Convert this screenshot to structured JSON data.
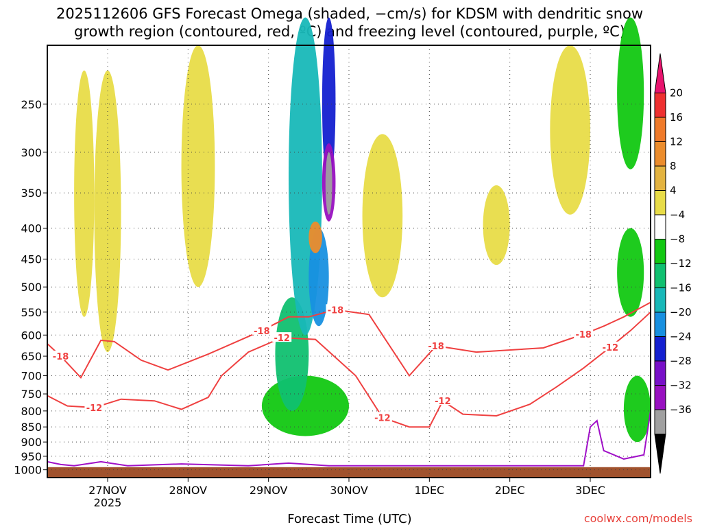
{
  "title": {
    "line1": "2025112606 GFS Forecast Omega (shaded, −cm/s) for KDSM with dendritic snow",
    "line2": "growth region (contoured, red, ºC) and freezing level (contoured, purple, ºC)"
  },
  "credit": "coolwx.com/models",
  "chart_data": {
    "type": "heatmap",
    "title": "2025112606 GFS Forecast Omega (shaded, −cm/s) for KDSM with dendritic snow growth region (contoured, red, ºC) and freezing level (contoured, purple, ºC)",
    "xlabel": "Forecast Time (UTC)",
    "ylabel": "",
    "x_ticks": [
      {
        "label": "27NOV",
        "sublabel": "2025",
        "hours": 18
      },
      {
        "label": "28NOV",
        "sublabel": "",
        "hours": 42
      },
      {
        "label": "29NOV",
        "sublabel": "",
        "hours": 66
      },
      {
        "label": "30NOV",
        "sublabel": "",
        "hours": 90
      },
      {
        "label": "1DEC",
        "sublabel": "",
        "hours": 114
      },
      {
        "label": "2DEC",
        "sublabel": "",
        "hours": 138
      },
      {
        "label": "3DEC",
        "sublabel": "",
        "hours": 162
      }
    ],
    "x_range_hours": [
      0,
      180
    ],
    "y_ticks": [
      "250",
      "300",
      "350",
      "400",
      "450",
      "500",
      "550",
      "600",
      "650",
      "700",
      "750",
      "800",
      "850",
      "900",
      "950",
      "1000"
    ],
    "y_range_hpa": [
      200,
      1030
    ],
    "y_scale": "log",
    "grid": true,
    "colorbar": {
      "ticks": [
        "20",
        "16",
        "12",
        "8",
        "4",
        "−4",
        "−8",
        "−12",
        "−16",
        "−20",
        "−24",
        "−28",
        "−32",
        "−36"
      ],
      "colors": [
        "#e8146e",
        "#ee3030",
        "#ef7a2a",
        "#eb8c2c",
        "#e3b340",
        "#e8dc48",
        "#ffffff",
        "#12c812",
        "#10c070",
        "#18b8b8",
        "#1890e0",
        "#1420d0",
        "#7810c8",
        "#9810c0",
        "#a0a0a0",
        "#000000"
      ]
    },
    "contours": {
      "dgz_color": "#ef4040",
      "freezing_color": "#a010c8",
      "labels_minus18": [
        "-18",
        "-18",
        "-18",
        "-18",
        "-18"
      ],
      "labels_minus12": [
        "-12",
        "-12",
        "-12",
        "-12",
        "-12"
      ],
      "minus18": [
        [
          0,
          620
        ],
        [
          4,
          650
        ],
        [
          10,
          705
        ],
        [
          16,
          612
        ],
        [
          20,
          615
        ],
        [
          28,
          660
        ],
        [
          36,
          685
        ],
        [
          48,
          645
        ],
        [
          64,
          590
        ],
        [
          72,
          560
        ],
        [
          78,
          560
        ],
        [
          86,
          545
        ],
        [
          96,
          555
        ],
        [
          108,
          700
        ],
        [
          116,
          625
        ],
        [
          128,
          640
        ],
        [
          148,
          630
        ],
        [
          160,
          598
        ],
        [
          166,
          580
        ],
        [
          172,
          560
        ],
        [
          180,
          530
        ]
      ],
      "minus12": [
        [
          0,
          755
        ],
        [
          6,
          785
        ],
        [
          14,
          790
        ],
        [
          22,
          765
        ],
        [
          32,
          770
        ],
        [
          40,
          795
        ],
        [
          48,
          760
        ],
        [
          52,
          700
        ],
        [
          60,
          640
        ],
        [
          70,
          606
        ],
        [
          80,
          610
        ],
        [
          92,
          700
        ],
        [
          100,
          820
        ],
        [
          108,
          850
        ],
        [
          114,
          850
        ],
        [
          118,
          770
        ],
        [
          124,
          810
        ],
        [
          134,
          815
        ],
        [
          144,
          780
        ],
        [
          152,
          730
        ],
        [
          160,
          680
        ],
        [
          168,
          628
        ],
        [
          174,
          590
        ],
        [
          180,
          550
        ]
      ],
      "freezing": [
        [
          0,
          970
        ],
        [
          4,
          980
        ],
        [
          8,
          985
        ],
        [
          16,
          970
        ],
        [
          24,
          985
        ],
        [
          40,
          978
        ],
        [
          60,
          985
        ],
        [
          72,
          975
        ],
        [
          84,
          985
        ],
        [
          100,
          985
        ],
        [
          160,
          985
        ],
        [
          162,
          850
        ],
        [
          164,
          830
        ],
        [
          166,
          930
        ],
        [
          172,
          960
        ],
        [
          178,
          945
        ],
        [
          180,
          800
        ]
      ]
    },
    "omega_regions": [
      {
        "hours": [
          64,
          90
        ],
        "hpa": [
          700,
          880
        ],
        "value": -6
      },
      {
        "hours": [
          68,
          78
        ],
        "hpa": [
          520,
          800
        ],
        "value": -10
      },
      {
        "hours": [
          72,
          82
        ],
        "hpa": [
          180,
          600
        ],
        "value": -14
      },
      {
        "hours": [
          78,
          84
        ],
        "hpa": [
          400,
          580
        ],
        "value": -18
      },
      {
        "hours": [
          82,
          86
        ],
        "hpa": [
          180,
          340
        ],
        "value": -22
      },
      {
        "hours": [
          82,
          86
        ],
        "hpa": [
          290,
          390
        ],
        "value": -30
      },
      {
        "hours": [
          83,
          85
        ],
        "hpa": [
          300,
          380
        ],
        "value": -34
      },
      {
        "hours": [
          78,
          82
        ],
        "hpa": [
          390,
          440
        ],
        "value": 10
      },
      {
        "hours": [
          8,
          14
        ],
        "hpa": [
          220,
          560
        ],
        "value": 4
      },
      {
        "hours": [
          14,
          22
        ],
        "hpa": [
          220,
          640
        ],
        "value": 4
      },
      {
        "hours": [
          40,
          50
        ],
        "hpa": [
          200,
          500
        ],
        "value": 4
      },
      {
        "hours": [
          94,
          106
        ],
        "hpa": [
          280,
          520
        ],
        "value": 4
      },
      {
        "hours": [
          130,
          138
        ],
        "hpa": [
          340,
          460
        ],
        "value": 4
      },
      {
        "hours": [
          150,
          162
        ],
        "hpa": [
          200,
          380
        ],
        "value": 4
      },
      {
        "hours": [
          170,
          178
        ],
        "hpa": [
          180,
          320
        ],
        "value": -6
      },
      {
        "hours": [
          170,
          178
        ],
        "hpa": [
          400,
          560
        ],
        "value": -6
      },
      {
        "hours": [
          172,
          180
        ],
        "hpa": [
          700,
          900
        ],
        "value": -6
      }
    ]
  }
}
